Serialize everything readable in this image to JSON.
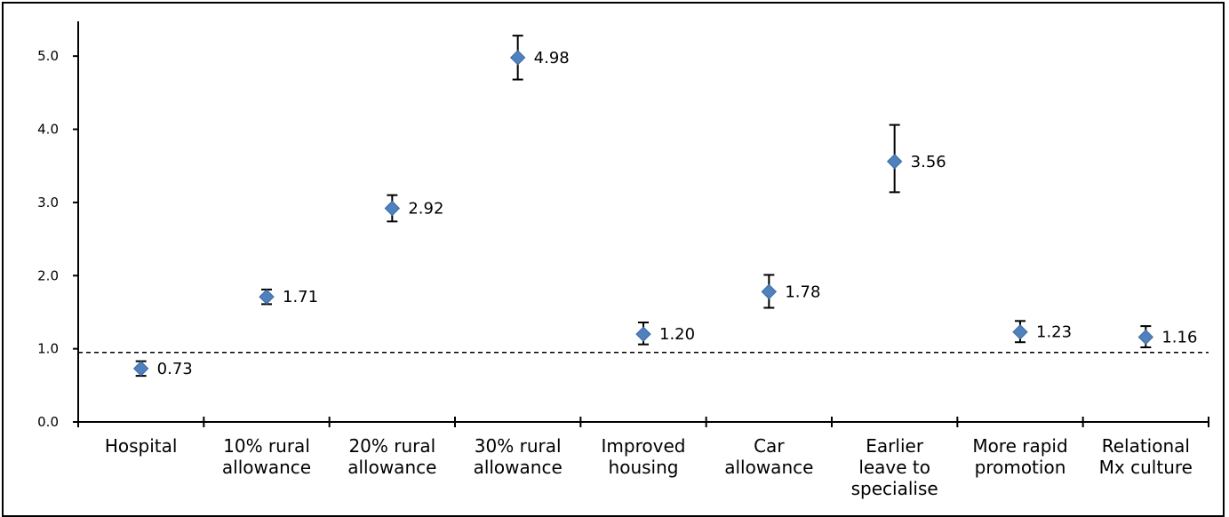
{
  "chart_data": {
    "type": "scatter",
    "title": "",
    "xlabel": "",
    "ylabel": "",
    "ylim": [
      0,
      5.0
    ],
    "yticks": [
      "0.0",
      "1.0",
      "2.0",
      "3.0",
      "4.0",
      "5.0"
    ],
    "categories": [
      [
        "Hospital"
      ],
      [
        "10% rural",
        "allowance"
      ],
      [
        "20% rural",
        "allowance"
      ],
      [
        "30% rural",
        "allowance"
      ],
      [
        "Improved",
        "housing"
      ],
      [
        "Car",
        "allowance"
      ],
      [
        "Earlier",
        "leave to",
        "specialise"
      ],
      [
        "More rapid",
        "promotion"
      ],
      [
        "Relational",
        "Mx culture"
      ]
    ],
    "series": [
      {
        "values": [
          0.73,
          1.71,
          2.92,
          4.98,
          1.2,
          1.78,
          3.56,
          1.23,
          1.16
        ],
        "labels": [
          "0.73",
          "1.71",
          "2.92",
          "4.98",
          "1.20",
          "1.78",
          "3.56",
          "1.23",
          "1.16"
        ],
        "ci_low": [
          0.63,
          1.61,
          2.74,
          4.68,
          1.06,
          1.56,
          3.14,
          1.09,
          1.02
        ],
        "ci_high": [
          0.83,
          1.81,
          3.1,
          5.28,
          1.36,
          2.01,
          4.06,
          1.38,
          1.31
        ]
      }
    ],
    "reference_line": 0.95,
    "grid": false,
    "legend": "none",
    "colors": {
      "marker": "#4F81BD",
      "axis": "#000000",
      "errorbar": "#000000"
    }
  }
}
